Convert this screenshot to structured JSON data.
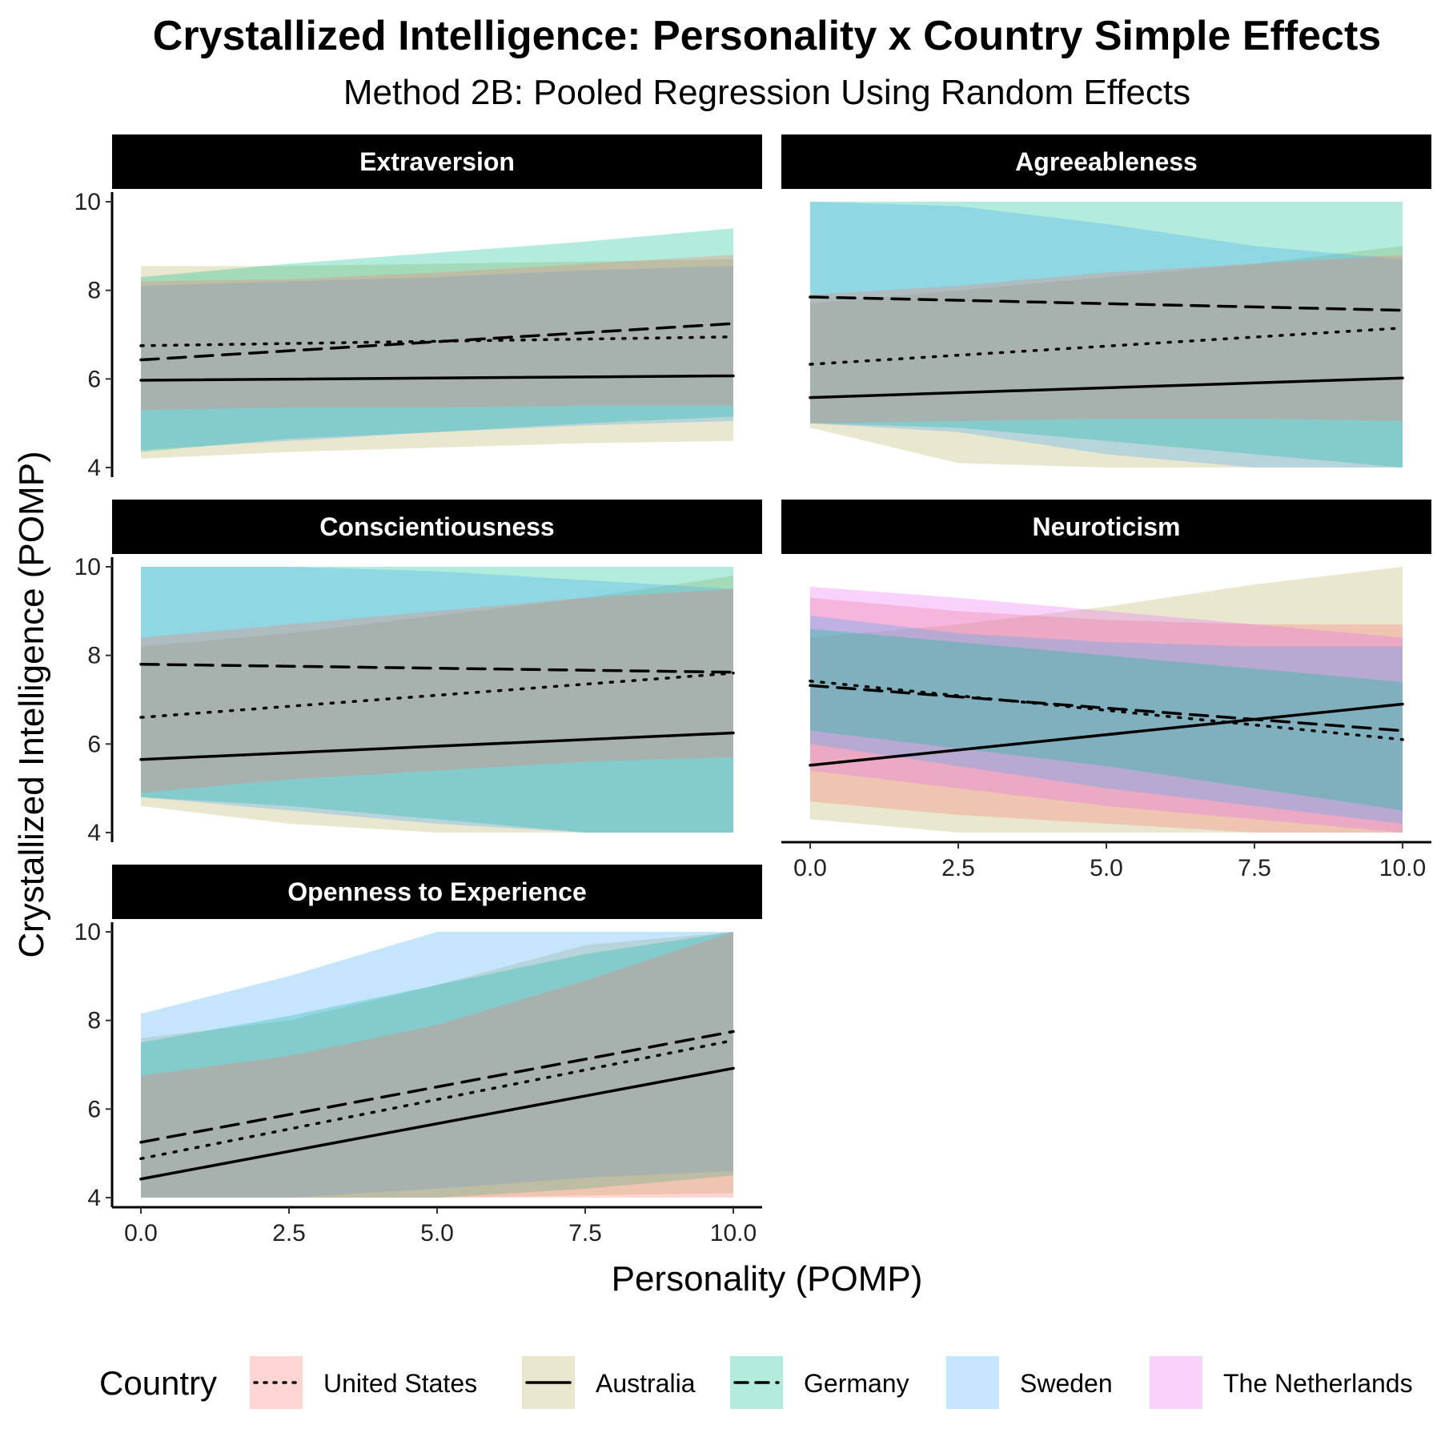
{
  "title": "Crystallized Intelligence: Personality x Country Simple Effects",
  "subtitle": "Method 2B: Pooled Regression Using Random Effects",
  "colors": {
    "United States": "#F8766D",
    "Australia": "#B9B061",
    "Germany": "#00C08B",
    "Sweden": "#3FA9F5",
    "The Netherlands": "#E76BF3"
  },
  "chart_data": [
    {
      "type": "line",
      "panel": "Extraversion",
      "xlabel": "Personality (POMP)",
      "ylabel": "Crystallized Intelligence (POMP)",
      "xlim": [
        0,
        10
      ],
      "ylim": [
        4,
        10
      ],
      "xticks": [
        "0.0",
        "2.5",
        "5.0",
        "7.5",
        "10.0"
      ],
      "yticks": [
        "4",
        "6",
        "8",
        "10"
      ],
      "lines": [
        {
          "name": "United States",
          "linetype": "dotted",
          "x": [
            0,
            10
          ],
          "y": [
            6.75,
            6.95
          ]
        },
        {
          "name": "Australia",
          "linetype": "solid",
          "x": [
            0,
            10
          ],
          "y": [
            5.97,
            6.07
          ]
        },
        {
          "name": "Germany",
          "linetype": "dashed",
          "x": [
            0,
            10
          ],
          "y": [
            6.43,
            7.25
          ]
        }
      ],
      "ribbons": [
        {
          "name": "Australia",
          "x": [
            0,
            2.5,
            5,
            7.5,
            10
          ],
          "ymin": [
            4.2,
            4.35,
            4.45,
            4.55,
            4.6
          ],
          "ymax": [
            8.55,
            8.55,
            8.6,
            8.65,
            8.7
          ]
        },
        {
          "name": "Germany",
          "x": [
            0,
            2.5,
            5,
            7.5,
            10
          ],
          "ymin": [
            4.35,
            4.65,
            4.8,
            5.0,
            5.15
          ],
          "ymax": [
            8.3,
            8.6,
            8.85,
            9.1,
            9.4
          ]
        },
        {
          "name": "Sweden",
          "x": [
            0,
            2.5,
            5,
            7.5,
            10
          ],
          "ymin": [
            4.4,
            4.6,
            4.8,
            4.95,
            5.05
          ],
          "ymax": [
            8.1,
            8.2,
            8.3,
            8.45,
            8.55
          ]
        },
        {
          "name": "United States",
          "x": [
            0,
            2.5,
            5,
            7.5,
            10
          ],
          "ymin": [
            5.3,
            5.35,
            5.35,
            5.4,
            5.4
          ],
          "ymax": [
            8.2,
            8.25,
            8.4,
            8.6,
            8.8
          ]
        }
      ]
    },
    {
      "type": "line",
      "panel": "Agreeableness",
      "xlabel": "Personality (POMP)",
      "ylabel": "Crystallized Intelligence (POMP)",
      "xlim": [
        0,
        10
      ],
      "ylim": [
        4,
        10
      ],
      "xticks": [
        "0.0",
        "2.5",
        "5.0",
        "7.5",
        "10.0"
      ],
      "yticks": [
        "4",
        "6",
        "8",
        "10"
      ],
      "lines": [
        {
          "name": "United States",
          "linetype": "dotted",
          "x": [
            0,
            10
          ],
          "y": [
            6.33,
            7.15
          ]
        },
        {
          "name": "Australia",
          "linetype": "solid",
          "x": [
            0,
            10
          ],
          "y": [
            5.58,
            6.02
          ]
        },
        {
          "name": "Germany",
          "linetype": "dashed",
          "x": [
            0,
            10
          ],
          "y": [
            7.85,
            7.55
          ]
        }
      ],
      "ribbons": [
        {
          "name": "Australia",
          "x": [
            0,
            2.5,
            5,
            7.5,
            10
          ],
          "ymin": [
            4.9,
            4.1,
            4.0,
            4.0,
            4.0
          ],
          "ymax": [
            7.7,
            8.0,
            8.3,
            8.6,
            9.0
          ]
        },
        {
          "name": "Germany",
          "x": [
            0,
            2.5,
            5,
            7.5,
            10
          ],
          "ymin": [
            5.0,
            4.9,
            4.6,
            4.3,
            4.0
          ],
          "ymax": [
            10.0,
            10.0,
            10.0,
            10.0,
            10.0
          ]
        },
        {
          "name": "Sweden",
          "x": [
            0,
            2.5,
            5,
            7.5,
            10
          ],
          "ymin": [
            5.0,
            4.8,
            4.3,
            4.0,
            4.0
          ],
          "ymax": [
            10.0,
            9.9,
            9.5,
            9.0,
            8.7
          ]
        },
        {
          "name": "United States",
          "x": [
            0,
            2.5,
            5,
            7.5,
            10
          ],
          "ymin": [
            5.0,
            5.05,
            5.1,
            5.1,
            5.05
          ],
          "ymax": [
            7.9,
            8.1,
            8.4,
            8.6,
            8.8
          ]
        }
      ]
    },
    {
      "type": "line",
      "panel": "Conscientiousness",
      "xlabel": "Personality (POMP)",
      "ylabel": "Crystallized Intelligence (POMP)",
      "xlim": [
        0,
        10
      ],
      "ylim": [
        4,
        10
      ],
      "xticks": [
        "0.0",
        "2.5",
        "5.0",
        "7.5",
        "10.0"
      ],
      "yticks": [
        "4",
        "6",
        "8",
        "10"
      ],
      "lines": [
        {
          "name": "United States",
          "linetype": "dotted",
          "x": [
            0,
            10
          ],
          "y": [
            6.6,
            7.6
          ]
        },
        {
          "name": "Australia",
          "linetype": "solid",
          "x": [
            0,
            10
          ],
          "y": [
            5.65,
            6.25
          ]
        },
        {
          "name": "Germany",
          "linetype": "dashed",
          "x": [
            0,
            10
          ],
          "y": [
            7.8,
            7.62
          ]
        }
      ],
      "ribbons": [
        {
          "name": "Australia",
          "x": [
            0,
            2.5,
            5,
            7.5,
            10
          ],
          "ymin": [
            4.6,
            4.2,
            4.0,
            4.0,
            4.0
          ],
          "ymax": [
            8.2,
            8.5,
            8.9,
            9.3,
            9.8
          ]
        },
        {
          "name": "Germany",
          "x": [
            0,
            2.5,
            5,
            7.5,
            10
          ],
          "ymin": [
            4.8,
            4.6,
            4.3,
            4.0,
            4.0
          ],
          "ymax": [
            10.0,
            10.0,
            10.0,
            10.0,
            10.0
          ]
        },
        {
          "name": "Sweden",
          "x": [
            0,
            2.5,
            5,
            7.5,
            10
          ],
          "ymin": [
            4.8,
            4.5,
            4.2,
            4.0,
            4.0
          ],
          "ymax": [
            10.0,
            10.0,
            9.9,
            9.7,
            9.5
          ]
        },
        {
          "name": "United States",
          "x": [
            0,
            2.5,
            5,
            7.5,
            10
          ],
          "ymin": [
            4.9,
            5.2,
            5.4,
            5.6,
            5.7
          ],
          "ymax": [
            8.4,
            8.7,
            9.0,
            9.3,
            9.5
          ]
        }
      ]
    },
    {
      "type": "line",
      "panel": "Neuroticism",
      "xlabel": "Personality (POMP)",
      "ylabel": "Crystallized Intelligence (POMP)",
      "xlim": [
        0,
        10
      ],
      "ylim": [
        4,
        10
      ],
      "xticks": [
        "0.0",
        "2.5",
        "5.0",
        "7.5",
        "10.0"
      ],
      "yticks": [
        "4",
        "6",
        "8",
        "10"
      ],
      "lines": [
        {
          "name": "United States",
          "linetype": "dotted",
          "x": [
            0,
            10
          ],
          "y": [
            7.42,
            6.1
          ]
        },
        {
          "name": "Australia",
          "linetype": "solid",
          "x": [
            0,
            10
          ],
          "y": [
            5.52,
            6.9
          ]
        },
        {
          "name": "Germany",
          "linetype": "dashed",
          "x": [
            0,
            10
          ],
          "y": [
            7.32,
            6.3
          ]
        }
      ],
      "ribbons": [
        {
          "name": "Australia",
          "x": [
            0,
            2.5,
            5,
            7.5,
            10
          ],
          "ymin": [
            4.3,
            4.0,
            4.0,
            4.0,
            4.0
          ],
          "ymax": [
            8.4,
            8.7,
            9.1,
            9.6,
            10.0
          ]
        },
        {
          "name": "United States",
          "x": [
            0,
            2.5,
            5,
            7.5,
            10
          ],
          "ymin": [
            4.7,
            4.4,
            4.2,
            4.0,
            4.0
          ],
          "ymax": [
            9.3,
            9.0,
            8.8,
            8.7,
            8.7
          ]
        },
        {
          "name": "The Netherlands",
          "x": [
            0,
            2.5,
            5,
            7.5,
            10
          ],
          "ymin": [
            5.4,
            5.0,
            4.6,
            4.3,
            4.0
          ],
          "ymax": [
            9.55,
            9.3,
            9.0,
            8.7,
            8.4
          ]
        },
        {
          "name": "Sweden",
          "x": [
            0,
            2.5,
            5,
            7.5,
            10
          ],
          "ymin": [
            6.0,
            5.5,
            5.0,
            4.6,
            4.2
          ],
          "ymax": [
            8.9,
            8.5,
            8.3,
            8.2,
            8.2
          ]
        },
        {
          "name": "Germany",
          "x": [
            0,
            2.5,
            5,
            7.5,
            10
          ],
          "ymin": [
            6.3,
            5.9,
            5.5,
            5.0,
            4.5
          ],
          "ymax": [
            8.6,
            8.3,
            8.0,
            7.7,
            7.4
          ]
        }
      ]
    },
    {
      "type": "line",
      "panel": "Openness to Experience",
      "xlabel": "Personality (POMP)",
      "ylabel": "Crystallized Intelligence (POMP)",
      "xlim": [
        0,
        10
      ],
      "ylim": [
        4,
        10
      ],
      "xticks": [
        "0.0",
        "2.5",
        "5.0",
        "7.5",
        "10.0"
      ],
      "yticks": [
        "4",
        "6",
        "8",
        "10"
      ],
      "lines": [
        {
          "name": "United States",
          "linetype": "dotted",
          "x": [
            0,
            10
          ],
          "y": [
            4.88,
            7.55
          ]
        },
        {
          "name": "Australia",
          "linetype": "solid",
          "x": [
            0,
            10
          ],
          "y": [
            4.42,
            6.92
          ]
        },
        {
          "name": "Germany",
          "linetype": "dashed",
          "x": [
            0,
            10
          ],
          "y": [
            5.25,
            7.75
          ]
        }
      ],
      "ribbons": [
        {
          "name": "Australia",
          "x": [
            0,
            2.5,
            5,
            7.5,
            10
          ],
          "ymin": [
            4.0,
            4.0,
            4.0,
            4.05,
            4.1
          ],
          "ymax": [
            7.6,
            8.0,
            8.8,
            9.7,
            10.0
          ]
        },
        {
          "name": "Germany",
          "x": [
            0,
            2.5,
            5,
            7.5,
            10
          ],
          "ymin": [
            4.0,
            4.0,
            4.0,
            4.2,
            4.5
          ],
          "ymax": [
            7.5,
            8.1,
            8.8,
            9.5,
            10.0
          ]
        },
        {
          "name": "Sweden",
          "x": [
            0,
            2.5,
            5,
            7.5,
            10
          ],
          "ymin": [
            4.0,
            4.0,
            4.2,
            4.45,
            4.6
          ],
          "ymax": [
            8.15,
            9.0,
            10.0,
            10.0,
            10.0
          ]
        },
        {
          "name": "United States",
          "x": [
            0,
            2.5,
            5,
            7.5,
            10
          ],
          "ymin": [
            4.0,
            4.0,
            4.0,
            4.0,
            4.0
          ],
          "ymax": [
            6.75,
            7.2,
            7.9,
            8.9,
            10.0
          ]
        }
      ]
    }
  ],
  "legend": {
    "title": "Country",
    "items": [
      {
        "label": "United States",
        "linetype": "dotted",
        "color": "#F8766D"
      },
      {
        "label": "Australia",
        "linetype": "solid",
        "color": "#B9B061"
      },
      {
        "label": "Germany",
        "linetype": "dashed",
        "color": "#00C08B"
      },
      {
        "label": "Sweden",
        "linetype": "none",
        "color": "#3FA9F5"
      },
      {
        "label": "The Netherlands",
        "linetype": "none",
        "color": "#E76BF3"
      }
    ]
  }
}
